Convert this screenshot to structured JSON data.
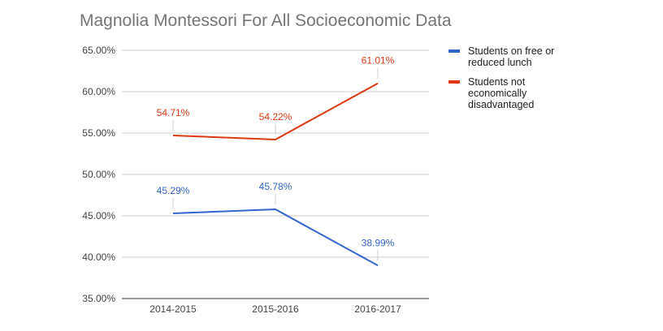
{
  "chart_data": {
    "type": "line",
    "title": "Magnolia Montessori For All Socioeconomic Data",
    "categories": [
      "2014-2015",
      "2015-2016",
      "2016-2017"
    ],
    "series": [
      {
        "name": "Students on free or reduced lunch",
        "color": "#3366cc",
        "values": [
          45.29,
          45.78,
          38.99
        ],
        "labels": [
          "45.29%",
          "45.78%",
          "38.99%"
        ]
      },
      {
        "name": "Students not economically disadvantaged",
        "color": "#dc3912",
        "values": [
          54.71,
          54.22,
          61.01
        ],
        "labels": [
          "54.71%",
          "54.22%",
          "61.01%"
        ]
      }
    ],
    "ylim": [
      35,
      65
    ],
    "yticks": [
      "35.00%",
      "40.00%",
      "45.00%",
      "50.00%",
      "55.00%",
      "60.00%",
      "65.00%"
    ],
    "grid": true,
    "legend": "right"
  }
}
